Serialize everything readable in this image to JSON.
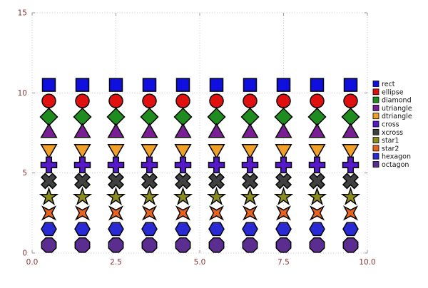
{
  "chart_data": {
    "type": "scatter",
    "title": "",
    "xlabel": "",
    "ylabel": "",
    "xlim": [
      0,
      10
    ],
    "ylim": [
      0,
      15
    ],
    "xticks": [
      0.0,
      2.5,
      5.0,
      7.5,
      10.0
    ],
    "xtick_labels": [
      "0.0",
      "2.5",
      "5.0",
      "7.5",
      "10.0"
    ],
    "yticks": [
      0,
      5,
      10,
      15
    ],
    "ytick_labels": [
      "0",
      "5",
      "10",
      "15"
    ],
    "grid": "dotted",
    "legend_position": "right",
    "x": [
      0.5,
      1.5,
      2.5,
      3.5,
      4.5,
      5.5,
      6.5,
      7.5,
      8.5,
      9.5
    ],
    "series": [
      {
        "name": "rect",
        "shape": "rect",
        "color": "#0f0fe0",
        "y": 10.5
      },
      {
        "name": "ellipse",
        "shape": "ellipse",
        "color": "#e01010",
        "y": 9.5
      },
      {
        "name": "diamond",
        "shape": "diamond",
        "color": "#1f8c1f",
        "y": 8.5
      },
      {
        "name": "utriangle",
        "shape": "utriangle",
        "color": "#7a1e96",
        "y": 7.5
      },
      {
        "name": "dtriangle",
        "shape": "dtriangle",
        "color": "#f0a028",
        "y": 6.5
      },
      {
        "name": "cross",
        "shape": "cross",
        "color": "#5519c8",
        "y": 5.5
      },
      {
        "name": "xcross",
        "shape": "xcross",
        "color": "#404040",
        "y": 4.5
      },
      {
        "name": "star1",
        "shape": "star1",
        "color": "#8c8c1e",
        "y": 3.5
      },
      {
        "name": "star2",
        "shape": "star2",
        "color": "#e8641e",
        "y": 2.5
      },
      {
        "name": "hexagon",
        "shape": "hexagon",
        "color": "#2a2ad4",
        "y": 1.5
      },
      {
        "name": "octagon",
        "shape": "octagon",
        "color": "#5c2d91",
        "y": 0.5
      }
    ],
    "colors": {
      "tick_labels": "#8b3535",
      "grid": "#c6c6c6",
      "marker_outline": "#000000",
      "legend_text": "#111111",
      "background": "#ffffff"
    }
  }
}
